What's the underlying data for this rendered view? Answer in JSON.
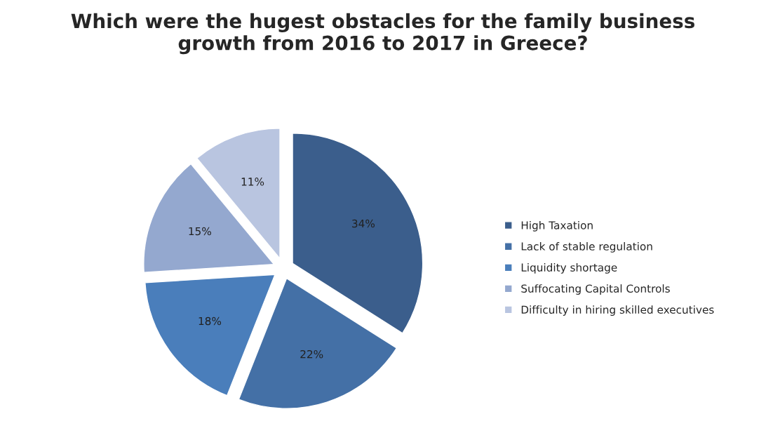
{
  "chart_data": {
    "type": "pie",
    "title": "Which were the hugest obstacles for the family business\ngrowth from 2016 to 2017 in Greece?",
    "categories": [
      "High Taxation",
      "Lack of stable regulation",
      "Liquidity shortage",
      "Suffocating Capital Controls",
      "Difficulty in hiring skilled executives"
    ],
    "values": [
      34,
      22,
      18,
      15,
      11
    ],
    "value_labels": [
      "34%",
      "22%",
      "18%",
      "15%",
      "11%"
    ],
    "colors": [
      "#3b5e8c",
      "#4470a6",
      "#4a7ebb",
      "#94a8cf",
      "#b9c5e0"
    ],
    "legend": "right"
  }
}
